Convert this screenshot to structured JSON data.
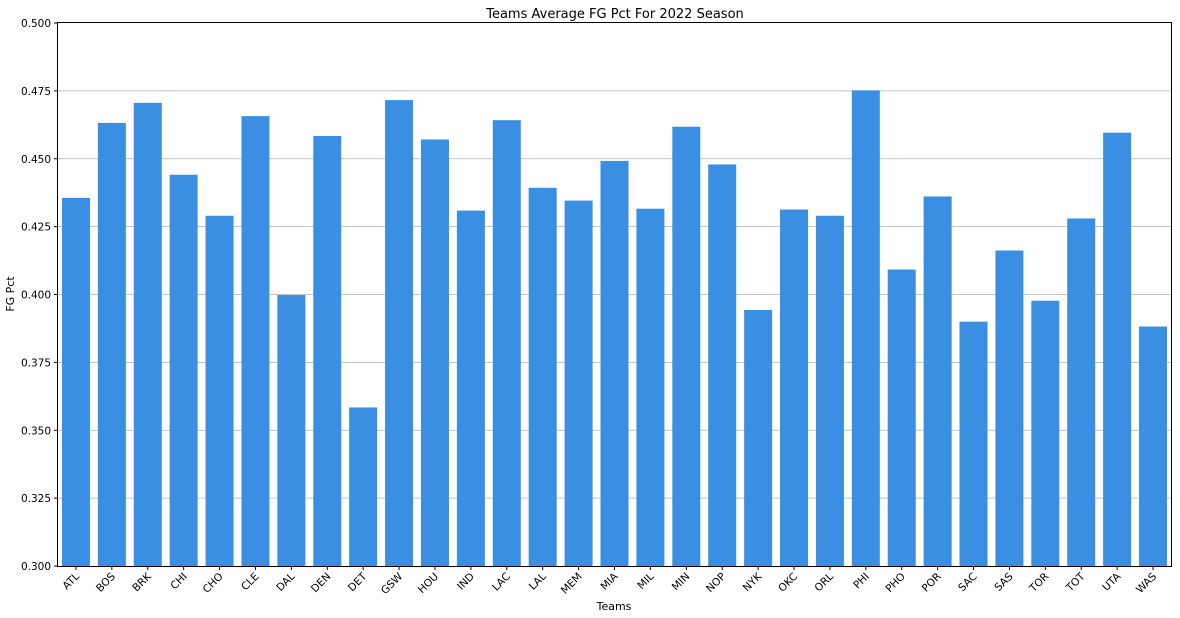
{
  "chart_data": {
    "type": "bar",
    "title": "Teams Average FG Pct For 2022 Season",
    "xlabel": "Teams",
    "ylabel": "FG Pct",
    "ylim": [
      0.3,
      0.5
    ],
    "yticks": [
      "0.300",
      "0.325",
      "0.350",
      "0.375",
      "0.400",
      "0.425",
      "0.450",
      "0.475",
      "0.500"
    ],
    "grid": "horizontal",
    "bar_color": "#3b8fe2",
    "grid_color": "#b0b0b0",
    "categories": [
      "ATL",
      "BOS",
      "BRK",
      "CHI",
      "CHO",
      "CLE",
      "DAL",
      "DEN",
      "DET",
      "GSW",
      "HOU",
      "IND",
      "LAC",
      "LAL",
      "MEM",
      "MIA",
      "MIL",
      "MIN",
      "NOP",
      "NYK",
      "OKC",
      "ORL",
      "PHI",
      "PHO",
      "POR",
      "SAC",
      "SAS",
      "TOR",
      "TOT",
      "UTA",
      "WAS"
    ],
    "values": [
      0.4356,
      0.4632,
      0.4706,
      0.4441,
      0.429,
      0.4657,
      0.3998,
      0.4584,
      0.3584,
      0.4716,
      0.4571,
      0.4309,
      0.4642,
      0.4393,
      0.4346,
      0.4492,
      0.4316,
      0.4618,
      0.4479,
      0.3943,
      0.4313,
      0.429,
      0.4752,
      0.4092,
      0.4361,
      0.39,
      0.4162,
      0.3977,
      0.428,
      0.4596,
      0.3882
    ]
  }
}
